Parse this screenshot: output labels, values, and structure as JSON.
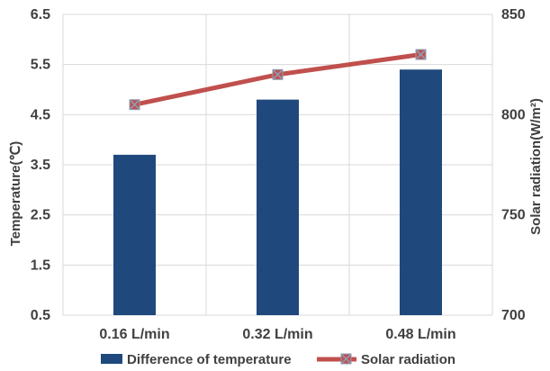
{
  "chart_data": {
    "type": "bar+line",
    "categories": [
      "0.16 L/min",
      "0.32 L/min",
      "0.48 L/min"
    ],
    "series": [
      {
        "name": "Difference of temperature",
        "type": "bar",
        "axis": "left",
        "values": [
          3.7,
          4.8,
          5.4
        ],
        "color": "#1f497d"
      },
      {
        "name": "Solar radiation",
        "type": "line",
        "axis": "right",
        "values": [
          805,
          820,
          830
        ],
        "color": "#c0504d",
        "marker": "x"
      }
    ],
    "ylabel": "Temperature(℃)",
    "ylabel_right": "Solar radiation(W/m²)",
    "ylim": [
      0.5,
      6.5
    ],
    "yticks": [
      "0.5",
      "1.5",
      "2.5",
      "3.5",
      "4.5",
      "5.5",
      "6.5"
    ],
    "ylim_right": [
      700,
      850
    ],
    "yticks_right": [
      "700",
      "750",
      "800",
      "850"
    ],
    "grid": true,
    "legend": "bottom"
  }
}
